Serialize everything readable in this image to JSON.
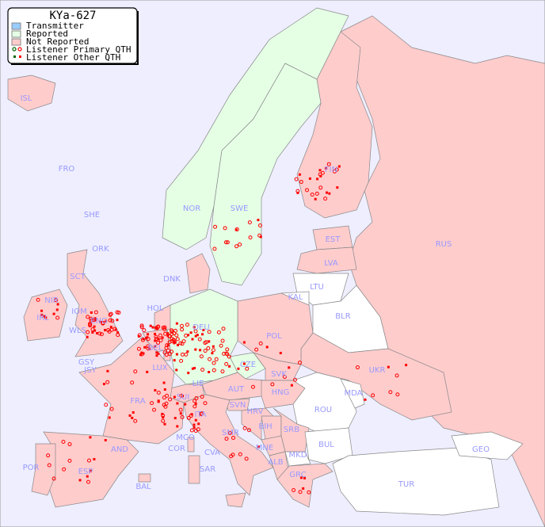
{
  "title": "KYa-627",
  "legend": {
    "items": [
      {
        "label": "Transmitter",
        "color": "#99ccff"
      },
      {
        "label": "Reported",
        "color": "#e5ffe5"
      },
      {
        "label": "Not Reported",
        "color": "#ffcccc"
      },
      {
        "label": "Listener Primary QTH",
        "symbol": "circle"
      },
      {
        "label": "Listener Other QTH",
        "symbol": "square"
      }
    ]
  },
  "colors": {
    "sea": "#eeeeff",
    "reported": "#e5ffe5",
    "not_reported": "#ffcccc",
    "no_data": "#ffffff",
    "listener": "#ff0000",
    "listener_reported": "#006600",
    "label": "#9999ff"
  },
  "countries": [
    "ISL",
    "FRO",
    "SHE",
    "ORK",
    "NOR",
    "SWE",
    "FIN",
    "EST",
    "LVA",
    "LTU",
    "RUS",
    "DNK",
    "NIR",
    "IRL",
    "SCT",
    "IOM",
    "WLS",
    "ENG",
    "HOL",
    "BEL",
    "KAL",
    "BLR",
    "POL",
    "DEU",
    "CZE",
    "SVK",
    "UKR",
    "LUX",
    "GSY",
    "JSY",
    "FRA",
    "SUI",
    "LIE",
    "AUT",
    "HNG",
    "MDA",
    "ROU",
    "SVN",
    "HRV",
    "ITA",
    "BIH",
    "SRB",
    "SMR",
    "MCO",
    "COR",
    "CVA",
    "MNE",
    "BUL",
    "AND",
    "ALB",
    "MKD",
    "GEO",
    "POR",
    "ESP",
    "SAR",
    "GRC",
    "BAL",
    "TUR"
  ]
}
